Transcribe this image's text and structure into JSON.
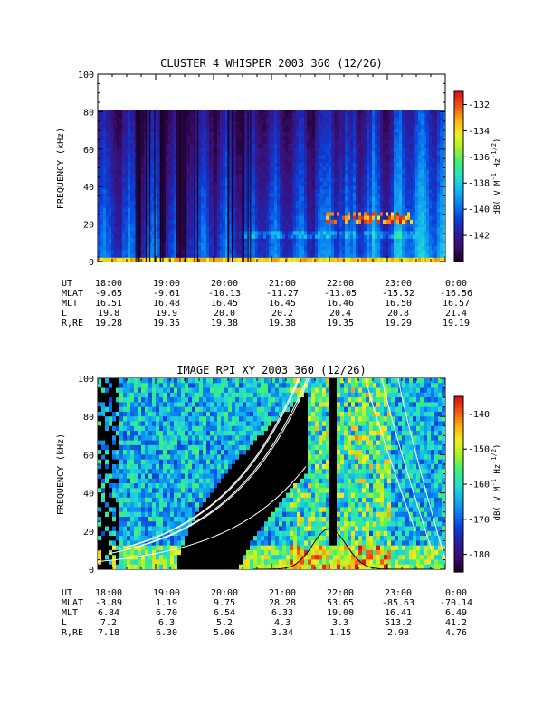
{
  "colorbar_palette": [
    "#200030",
    "#3a0f70",
    "#2a1ea0",
    "#0b40d8",
    "#0a7ff0",
    "#14b4f0",
    "#26e0c8",
    "#3cf07a",
    "#a8f02a",
    "#f0f020",
    "#f8b414",
    "#f05a14",
    "#d81414"
  ],
  "chart_data": [
    {
      "type": "heatmap",
      "title": "CLUSTER 4 WHISPER 2003 360 (12/26)",
      "xlabel": "",
      "ylabel": "FREQUENCY (kHz)",
      "x_ticks": [
        "18:00",
        "19:00",
        "20:00",
        "21:00",
        "22:00",
        "23:00",
        "0:00"
      ],
      "y_ticks": [
        "0",
        "20",
        "40",
        "60",
        "80",
        "100"
      ],
      "ylim": [
        0,
        100
      ],
      "data_top_khz": 80,
      "colorbar": {
        "label": "dB( V M⁻¹ Hz⁻¹ᐟ²)",
        "label_main": "dB( V M",
        "label_sup1": "-1",
        "label_mid": " Hz",
        "label_sup2": "-1/2",
        "label_end": ")",
        "ticks": [
          "-132",
          "-134",
          "-136",
          "-138",
          "-140",
          "-142"
        ],
        "range": [
          -144,
          -131
        ]
      },
      "ephemeris": [
        {
          "name": "UT",
          "values": [
            "18:00",
            "19:00",
            "20:00",
            "21:00",
            "22:00",
            "23:00",
            "0:00"
          ]
        },
        {
          "name": "MLAT",
          "values": [
            "-9.65",
            "-9.61",
            "-10.13",
            "-11.27",
            "-13.05",
            "-15.52",
            "-16.56"
          ]
        },
        {
          "name": "MLT",
          "values": [
            "16.51",
            "16.48",
            "16.45",
            "16.45",
            "16.46",
            "16.50",
            "16.57"
          ]
        },
        {
          "name": "L",
          "values": [
            "19.8",
            "19.9",
            "20.0",
            "20.2",
            "20.4",
            "20.8",
            "21.4"
          ]
        },
        {
          "name": "R,RE",
          "values": [
            "19.28",
            "19.35",
            "19.38",
            "19.38",
            "19.35",
            "19.29",
            "19.19"
          ]
        }
      ]
    },
    {
      "type": "heatmap",
      "title": "IMAGE RPI XY 2003 360 (12/26)",
      "xlabel": "",
      "ylabel": "FREQUENCY (kHz)",
      "x_ticks": [
        "18:00",
        "19:00",
        "20:00",
        "21:00",
        "22:00",
        "23:00",
        "0:00"
      ],
      "y_ticks": [
        "0",
        "20",
        "40",
        "60",
        "80",
        "100"
      ],
      "ylim": [
        0,
        100
      ],
      "colorbar": {
        "label_main": "dB( V M",
        "label_sup1": "-1",
        "label_mid": " Hz",
        "label_sup2": "-1/2",
        "label_end": ")",
        "ticks": [
          "-140",
          "-150",
          "-160",
          "-170",
          "-180"
        ],
        "range": [
          -185,
          -135
        ]
      },
      "ephemeris": [
        {
          "name": "UT",
          "values": [
            "18:00",
            "19:00",
            "20:00",
            "21:00",
            "22:00",
            "23:00",
            "0:00"
          ]
        },
        {
          "name": "MLAT",
          "values": [
            "-3.89",
            "1.19",
            "9.75",
            "28.28",
            "53.65",
            "-85.63",
            "-70.14"
          ]
        },
        {
          "name": "MLT",
          "values": [
            "6.84",
            "6.70",
            "6.54",
            "6.33",
            "19.00",
            "16.41",
            "6.49"
          ]
        },
        {
          "name": "L",
          "values": [
            "7.2",
            "6.3",
            "5.2",
            "4.3",
            "3.3",
            "513.2",
            "41.2"
          ]
        },
        {
          "name": "R,RE",
          "values": [
            "7.18",
            "6.30",
            "5.06",
            "3.34",
            "1.15",
            "2.98",
            "4.76"
          ]
        }
      ]
    }
  ]
}
